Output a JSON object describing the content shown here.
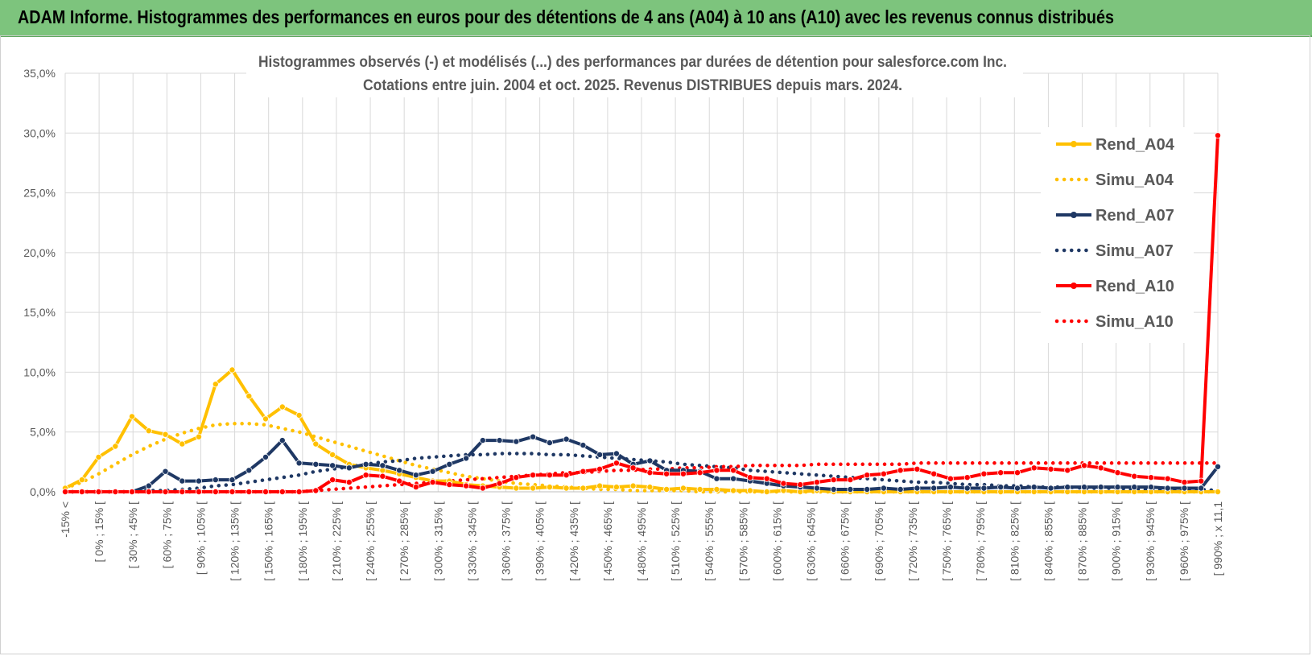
{
  "header": {
    "title": "ADAM Informe. Histogrammes des performances en euros pour des détentions de 4 ans (A04) à 10 ans (A10) avec les revenus connus distribués"
  },
  "chart_data": {
    "type": "line",
    "title": "Histogrammes observés (-) et modélisés (...) des performances par durées de détention pour salesforce.com Inc.",
    "subtitle": "Cotations entre juin. 2004 et oct. 2025. Revenus DISTRIBUES depuis mars. 2024.",
    "ylim": [
      0,
      35
    ],
    "yticks": [
      "0,0%",
      "5,0%",
      "10,0%",
      "15,0%",
      "20,0%",
      "25,0%",
      "30,0%",
      "35,0%"
    ],
    "xtick_labels": [
      "-15% <",
      "[ 0% ; 15% [",
      "[ 30% ; 45% [",
      "[ 60% ; 75% [",
      "[ 90% ; 105% [",
      "[ 120% ; 135% [",
      "[ 150% ; 165% [",
      "[ 180% ; 195% [",
      "[ 210% ; 225% [",
      "[ 240% ; 255% [",
      "[ 270% ; 285% [",
      "[ 300% ; 315% [",
      "[ 330% ; 345% [",
      "[ 360% ; 375% [",
      "[ 390% ; 405% [",
      "[ 420% ; 435% [",
      "[ 450% ; 465% [",
      "[ 480% ; 495% [",
      "[ 510% ; 525% [",
      "[ 540% ; 555% [",
      "[ 570% ; 585% [",
      "[ 600% ; 615% [",
      "[ 630% ; 645% [",
      "[ 660% ; 675% [",
      "[ 690% ; 705% [",
      "[ 720% ; 735% [",
      "[ 750% ; 765% [",
      "[ 780% ; 795% [",
      "[ 810% ; 825% [",
      "[ 840% ; 855% [",
      "[ 870% ; 885% [",
      "[ 900% ; 915% [",
      "[ 930% ; 945% [",
      "[ 960% ; 975% [",
      "[ 990% ; x 11,1"
    ],
    "series": [
      {
        "name": "Rend_A04",
        "style": "solid",
        "markers": true,
        "color": "#ffc000",
        "values": [
          0.3,
          1.0,
          2.9,
          3.8,
          6.3,
          5.1,
          4.8,
          4.0,
          4.6,
          9.0,
          10.2,
          8.0,
          6.1,
          7.1,
          6.4,
          4.0,
          3.1,
          2.3,
          2.0,
          1.8,
          1.5,
          1.2,
          0.9,
          0.9,
          0.6,
          0.5,
          0.4,
          0.3,
          0.3,
          0.4,
          0.3,
          0.3,
          0.5,
          0.4,
          0.5,
          0.4,
          0.2,
          0.3,
          0.2,
          0.2,
          0.1,
          0.1,
          0.0,
          0.1,
          0.0,
          0.1,
          0.0,
          0.0,
          0.0,
          0.0,
          0.0,
          0.0,
          0.0,
          0.0,
          0.0,
          0.0,
          0.0,
          0.0,
          0.0,
          0.0,
          0.0,
          0.0,
          0.0,
          0.0,
          0.0,
          0.0,
          0.0,
          0.0,
          0.0,
          0.0
        ]
      },
      {
        "name": "Simu_A04",
        "style": "dotted",
        "markers": false,
        "color": "#ffc000",
        "values": [
          0.3,
          0.8,
          1.5,
          2.3,
          3.1,
          3.8,
          4.4,
          4.9,
          5.3,
          5.6,
          5.7,
          5.7,
          5.6,
          5.3,
          5.0,
          4.6,
          4.2,
          3.8,
          3.4,
          3.0,
          2.6,
          2.2,
          1.9,
          1.6,
          1.3,
          1.1,
          0.9,
          0.7,
          0.6,
          0.5,
          0.4,
          0.3,
          0.2,
          0.2,
          0.1,
          0.1,
          0.1,
          0.1,
          0.0,
          0.0,
          0.0,
          0.0,
          0.0,
          0.0,
          0.0,
          0.0,
          0.0,
          0.0,
          0.0,
          0.0,
          0.0,
          0.0,
          0.0,
          0.0,
          0.0,
          0.0,
          0.0,
          0.0,
          0.0,
          0.0,
          0.0,
          0.0,
          0.0,
          0.0,
          0.0,
          0.0,
          0.0,
          0.0,
          0.0,
          0.0
        ]
      },
      {
        "name": "Rend_A07",
        "style": "solid",
        "markers": true,
        "color": "#1f3864",
        "values": [
          0.0,
          0.0,
          0.0,
          0.0,
          0.0,
          0.5,
          1.7,
          0.9,
          0.9,
          1.0,
          1.0,
          1.8,
          2.9,
          4.3,
          2.4,
          2.3,
          2.2,
          2.0,
          2.3,
          2.2,
          1.8,
          1.4,
          1.7,
          2.3,
          2.8,
          4.3,
          4.3,
          4.2,
          4.6,
          4.1,
          4.4,
          3.9,
          3.1,
          3.2,
          2.3,
          2.6,
          1.8,
          1.8,
          1.7,
          1.1,
          1.1,
          0.9,
          0.7,
          0.5,
          0.4,
          0.3,
          0.2,
          0.2,
          0.2,
          0.3,
          0.2,
          0.3,
          0.3,
          0.4,
          0.3,
          0.3,
          0.4,
          0.3,
          0.4,
          0.3,
          0.4,
          0.4,
          0.4,
          0.4,
          0.4,
          0.4,
          0.3,
          0.3,
          0.3,
          2.1
        ]
      },
      {
        "name": "Simu_A07",
        "style": "dotted",
        "markers": false,
        "color": "#1f3864",
        "values": [
          0.0,
          0.0,
          0.0,
          0.0,
          0.0,
          0.1,
          0.1,
          0.2,
          0.3,
          0.5,
          0.6,
          0.8,
          1.0,
          1.2,
          1.4,
          1.7,
          1.9,
          2.1,
          2.3,
          2.5,
          2.6,
          2.8,
          2.9,
          3.0,
          3.1,
          3.1,
          3.2,
          3.2,
          3.2,
          3.1,
          3.1,
          3.0,
          2.9,
          2.8,
          2.7,
          2.6,
          2.5,
          2.3,
          2.2,
          2.1,
          2.0,
          1.8,
          1.7,
          1.6,
          1.5,
          1.4,
          1.3,
          1.2,
          1.1,
          1.0,
          0.9,
          0.8,
          0.8,
          0.7,
          0.6,
          0.6,
          0.5,
          0.5,
          0.4,
          0.4,
          0.4,
          0.3,
          0.3,
          0.3,
          0.2,
          0.2,
          0.2,
          0.2,
          0.2,
          0.1
        ]
      },
      {
        "name": "Rend_A10",
        "style": "solid",
        "markers": true,
        "color": "#ff0000",
        "values": [
          0.0,
          0.0,
          0.0,
          0.0,
          0.0,
          0.0,
          0.0,
          0.0,
          0.0,
          0.0,
          0.0,
          0.0,
          0.0,
          0.0,
          0.0,
          0.1,
          1.0,
          0.8,
          1.4,
          1.3,
          0.9,
          0.4,
          0.8,
          0.6,
          0.5,
          0.3,
          0.7,
          1.2,
          1.4,
          1.4,
          1.4,
          1.7,
          1.9,
          2.4,
          2.0,
          1.6,
          1.5,
          1.5,
          1.6,
          1.8,
          1.8,
          1.2,
          1.1,
          0.7,
          0.6,
          0.8,
          1.0,
          1.0,
          1.4,
          1.5,
          1.8,
          1.9,
          1.5,
          1.1,
          1.2,
          1.5,
          1.6,
          1.6,
          2.0,
          1.9,
          1.8,
          2.2,
          2.0,
          1.6,
          1.3,
          1.2,
          1.1,
          0.8,
          0.9,
          29.8
        ]
      },
      {
        "name": "Simu_A10",
        "style": "dotted",
        "markers": false,
        "color": "#ff0000",
        "values": [
          0.0,
          0.0,
          0.0,
          0.0,
          0.0,
          0.0,
          0.0,
          0.0,
          0.0,
          0.0,
          0.0,
          0.0,
          0.0,
          0.0,
          0.0,
          0.1,
          0.2,
          0.3,
          0.4,
          0.5,
          0.6,
          0.7,
          0.8,
          0.9,
          1.0,
          1.1,
          1.2,
          1.3,
          1.4,
          1.5,
          1.6,
          1.6,
          1.7,
          1.8,
          1.8,
          1.9,
          1.9,
          2.0,
          2.0,
          2.1,
          2.1,
          2.2,
          2.2,
          2.2,
          2.2,
          2.3,
          2.3,
          2.3,
          2.3,
          2.3,
          2.3,
          2.4,
          2.4,
          2.4,
          2.4,
          2.4,
          2.4,
          2.4,
          2.4,
          2.4,
          2.4,
          2.4,
          2.4,
          2.4,
          2.4,
          2.4,
          2.4,
          2.4,
          2.4,
          2.4
        ]
      }
    ],
    "legend": [
      "Rend_A04",
      "Simu_A04",
      "Rend_A07",
      "Simu_A07",
      "Rend_A10",
      "Simu_A10"
    ],
    "legend_position": "right"
  }
}
